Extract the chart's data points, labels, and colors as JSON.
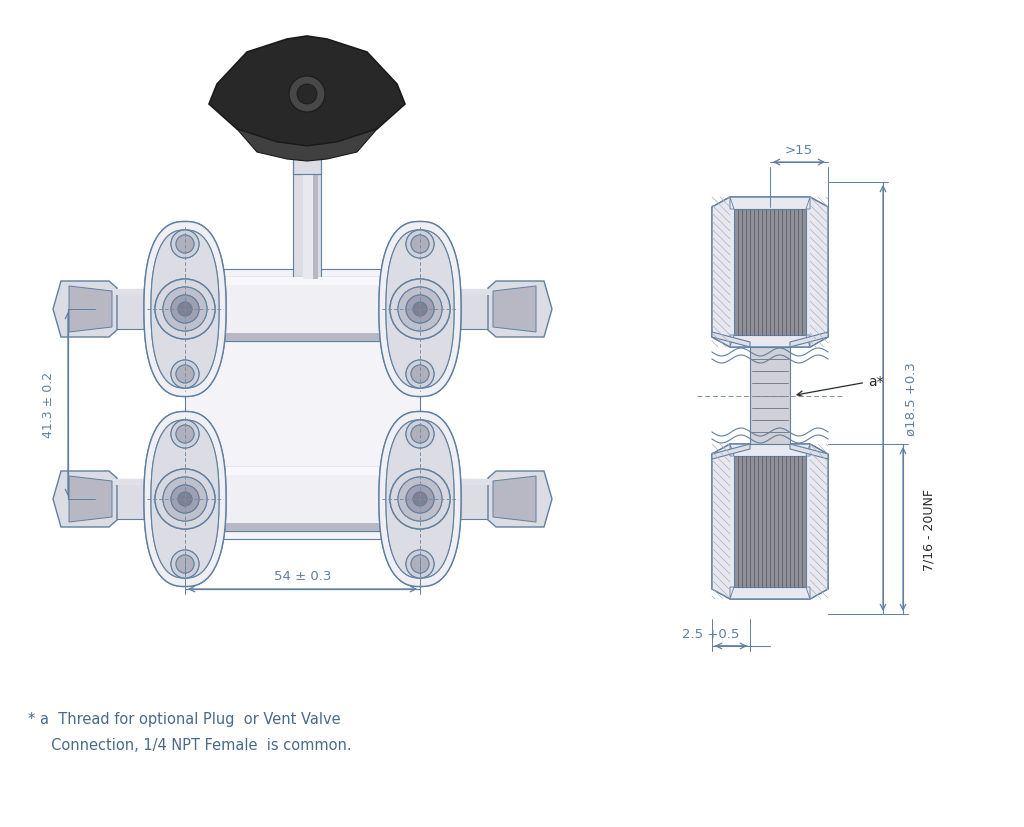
{
  "bg_color": "#ffffff",
  "line_color": "#6080a0",
  "dark_color": "#2a2a2a",
  "dim_color": "#6080a0",
  "body_light": "#f0f0f4",
  "body_mid": "#dcdce4",
  "body_dark": "#b8b8c4",
  "body_darker": "#9898a8",
  "thread_fill": "#909098",
  "hatch_color": "#c0c0c8",
  "port_fill": "#d0d0d8",
  "knob_dark": "#282828",
  "knob_mid": "#3a3a3a",
  "stem_fill": "#c8c8d0",
  "footnote_line1": "* a  Thread for optional Plug  or Vent Valve",
  "footnote_line2": "     Connection, 1/4 NPT Female  is common.",
  "dim_54": "54 ± 0.3",
  "dim_41": "41.3 ± 0.2",
  "dim_gt15": ">15",
  "dim_dia": "ø18.5 +0.3",
  "dim_25": "2.5 +0.5",
  "dim_thread": "7/16 - 20UNF",
  "dim_a": "a*"
}
